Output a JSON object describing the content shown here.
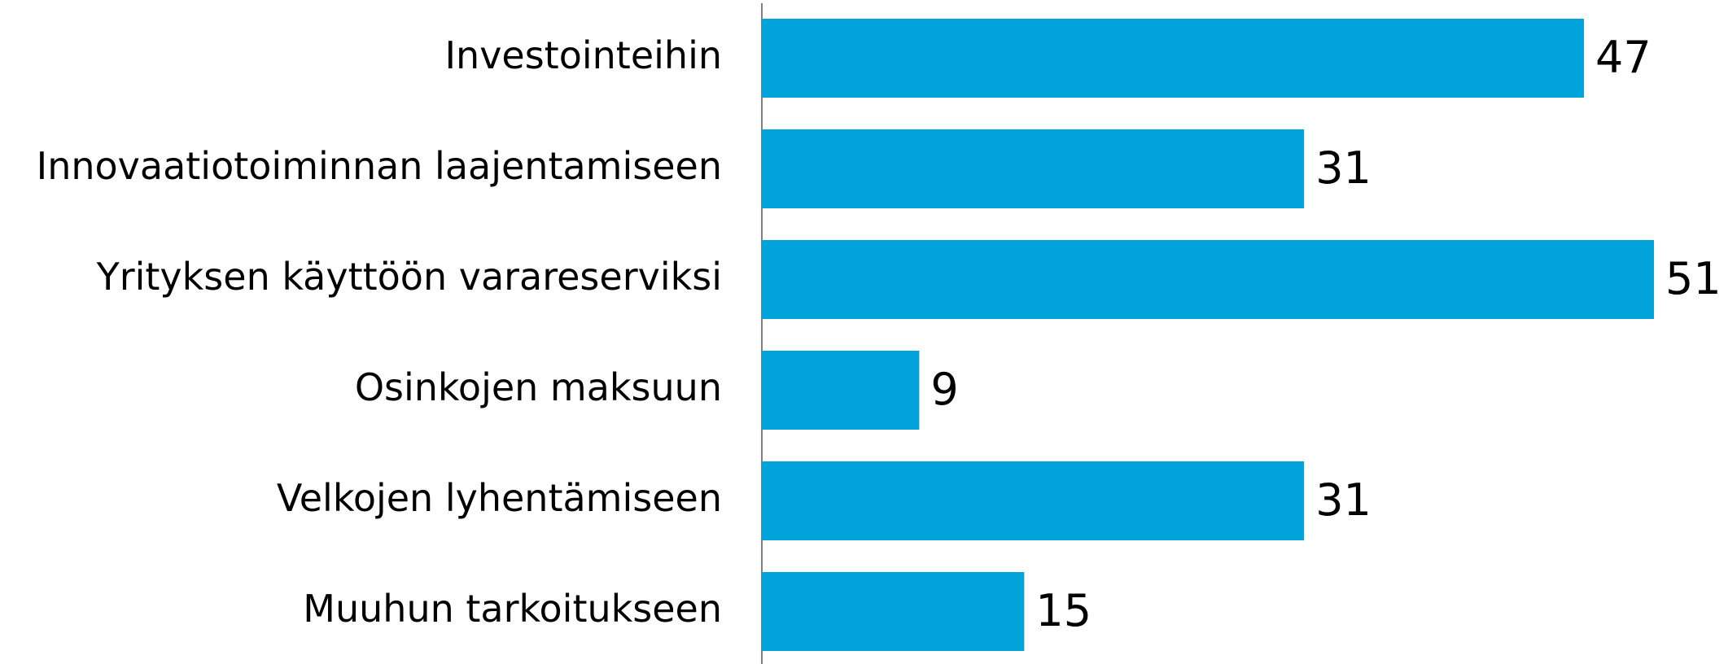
{
  "chart_data": {
    "type": "bar",
    "orientation": "horizontal",
    "categories": [
      "Investointeihin",
      "Innovaatiotoiminnan laajentamiseen",
      "Yrityksen käyttöön varareserviksi",
      "Osinkojen maksuun",
      "Velkojen lyhentämiseen",
      "Muuhun tarkoitukseen"
    ],
    "values": [
      47,
      31,
      51,
      9,
      31,
      15
    ],
    "color": "#00a3da"
  }
}
